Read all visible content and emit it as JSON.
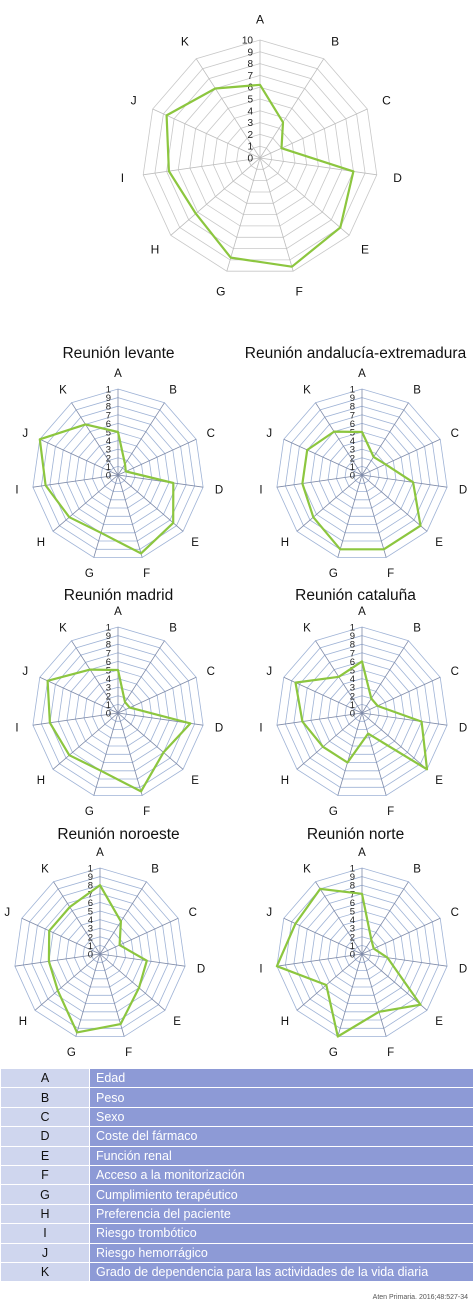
{
  "chart_data": [
    {
      "type": "radar",
      "title": "",
      "axes": [
        "A",
        "B",
        "C",
        "D",
        "E",
        "F",
        "G",
        "H",
        "I",
        "J",
        "K"
      ],
      "range": [
        0,
        10
      ],
      "ticks": [
        "0",
        "1",
        "2",
        "3",
        "4",
        "5",
        "6",
        "7",
        "8",
        "9",
        "10"
      ],
      "values": [
        6.2,
        3.6,
        2.0,
        8.0,
        9.0,
        9.6,
        8.8,
        7.2,
        7.8,
        8.7,
        7.0
      ],
      "series_color": "#8cc63f",
      "grid_color": "#c8c8c8"
    },
    {
      "type": "radar",
      "title": "Reunión levante",
      "axes": [
        "A",
        "B",
        "C",
        "D",
        "E",
        "F",
        "G",
        "H",
        "I",
        "J",
        "K"
      ],
      "range": [
        0,
        10
      ],
      "ticks": [
        "0",
        "1",
        "2",
        "3",
        "4",
        "5",
        "6",
        "7",
        "8",
        "9",
        "1"
      ],
      "values": [
        5.0,
        1.5,
        1.0,
        6.5,
        8.5,
        9.5,
        7.0,
        7.5,
        8.5,
        10.0,
        7.0
      ],
      "series_color": "#8cc63f",
      "grid_color": "#9fb3d6"
    },
    {
      "type": "radar",
      "title": "Reunión andalucía-extremadura",
      "axes": [
        "A",
        "B",
        "C",
        "D",
        "E",
        "F",
        "G",
        "H",
        "I",
        "J",
        "K"
      ],
      "range": [
        0,
        10
      ],
      "ticks": [
        "0",
        "1",
        "2",
        "3",
        "4",
        "5",
        "6",
        "7",
        "8",
        "9",
        "1"
      ],
      "values": [
        5.0,
        2.5,
        3.0,
        6.0,
        9.0,
        9.0,
        9.0,
        7.5,
        7.0,
        7.0,
        6.0
      ],
      "series_color": "#8cc63f",
      "grid_color": "#9fb3d6"
    },
    {
      "type": "radar",
      "title": "Reunión madrid",
      "axes": [
        "A",
        "B",
        "C",
        "D",
        "E",
        "F",
        "G",
        "H",
        "I",
        "J",
        "K"
      ],
      "range": [
        0,
        10
      ],
      "ticks": [
        "0",
        "1",
        "2",
        "3",
        "4",
        "5",
        "6",
        "7",
        "8",
        "9",
        "1"
      ],
      "values": [
        5.0,
        1.5,
        1.5,
        8.5,
        7.0,
        9.5,
        7.0,
        7.5,
        8.0,
        9.0,
        6.0
      ],
      "series_color": "#8cc63f",
      "grid_color": "#9fb3d6"
    },
    {
      "type": "radar",
      "title": "Reunión cataluña",
      "axes": [
        "A",
        "B",
        "C",
        "D",
        "E",
        "F",
        "G",
        "H",
        "I",
        "J",
        "K"
      ],
      "range": [
        0,
        10
      ],
      "ticks": [
        "0",
        "1",
        "2",
        "3",
        "4",
        "5",
        "6",
        "7",
        "8",
        "9",
        "1"
      ],
      "values": [
        6.0,
        2.0,
        2.0,
        7.0,
        10.0,
        2.5,
        6.0,
        6.0,
        7.0,
        8.5,
        5.0
      ],
      "series_color": "#8cc63f",
      "grid_color": "#9fb3d6"
    },
    {
      "type": "radar",
      "title": "Reunión noroeste",
      "axes": [
        "A",
        "B",
        "C",
        "D",
        "E",
        "F",
        "G",
        "H",
        "I",
        "J",
        "K"
      ],
      "range": [
        0,
        10
      ],
      "ticks": [
        "0",
        "1",
        "2",
        "3",
        "4",
        "5",
        "6",
        "7",
        "8",
        "9",
        "1"
      ],
      "values": [
        8.0,
        4.5,
        2.5,
        5.5,
        6.0,
        8.5,
        9.5,
        6.5,
        6.0,
        6.5,
        6.5
      ],
      "series_color": "#8cc63f",
      "grid_color": "#9fb3d6"
    },
    {
      "type": "radar",
      "title": "Reunión norte",
      "axes": [
        "A",
        "B",
        "C",
        "D",
        "E",
        "F",
        "G",
        "H",
        "I",
        "J",
        "K"
      ],
      "range": [
        0,
        10
      ],
      "ticks": [
        "0",
        "1",
        "2",
        "3",
        "4",
        "5",
        "6",
        "7",
        "8",
        "9",
        "1"
      ],
      "values": [
        7.0,
        2.0,
        1.5,
        3.0,
        9.0,
        7.0,
        10.0,
        5.5,
        10.0,
        8.5,
        9.0
      ],
      "series_color": "#8cc63f",
      "grid_color": "#9fb3d6"
    }
  ],
  "legend_table": [
    {
      "code": "A",
      "label": "Edad"
    },
    {
      "code": "B",
      "label": "Peso"
    },
    {
      "code": "C",
      "label": "Sexo"
    },
    {
      "code": "D",
      "label": "Coste del fármaco"
    },
    {
      "code": "E",
      "label": "Función renal"
    },
    {
      "code": "F",
      "label": "Acceso a la monitorización"
    },
    {
      "code": "G",
      "label": "Cumplimiento terapéutico"
    },
    {
      "code": "H",
      "label": "Preferencia del paciente"
    },
    {
      "code": "I",
      "label": "Riesgo trombótico"
    },
    {
      "code": "J",
      "label": "Riesgo hemorrágico"
    },
    {
      "code": "K",
      "label": "Grado de dependencia para las actividades de la vida diaria"
    }
  ],
  "credit": "Aten Primaria. 2016;48:527-34"
}
